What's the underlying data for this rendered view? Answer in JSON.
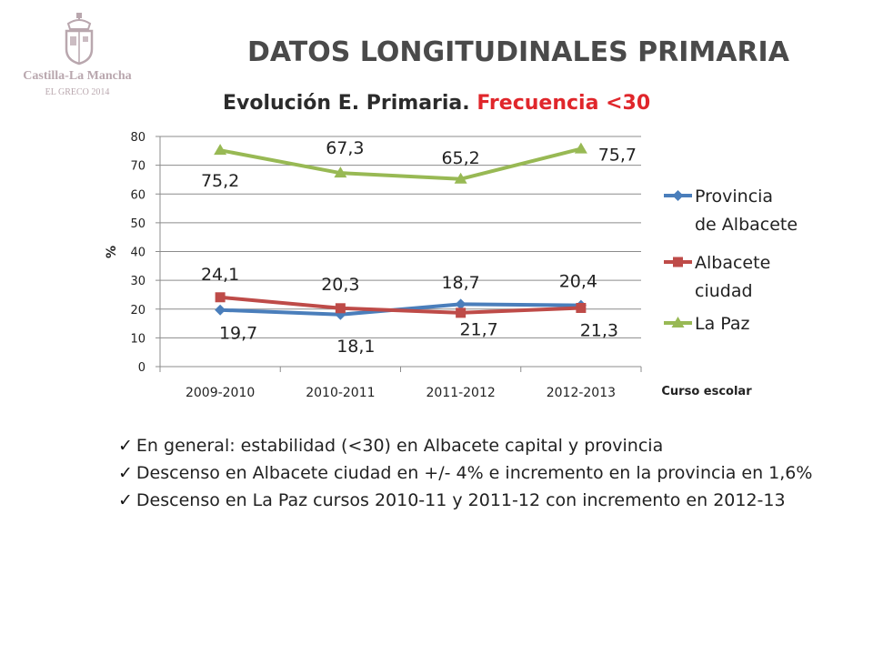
{
  "logo": {
    "name": "Castilla-La Mancha",
    "subtitle": "EL GRECO 2014"
  },
  "slide_title": "DATOS LONGITUDINALES PRIMARIA",
  "chart_title_main": "Evolución E. Primaria.",
  "chart_title_highlight": "Frecuencia <30",
  "colors": {
    "provincia": "#4a7ebb",
    "ciudad": "#be4b48",
    "lapaz": "#98b954",
    "highlight": "#e0262b"
  },
  "chart_data": {
    "type": "line",
    "title": "Evolución E. Primaria. Frecuencia <30",
    "xlabel": "Curso escolar",
    "ylabel": "%",
    "ylim": [
      0,
      80
    ],
    "yticks": [
      0,
      10,
      20,
      30,
      40,
      50,
      60,
      70,
      80
    ],
    "categories": [
      "2009-2010",
      "2010-2011",
      "2011-2012",
      "2012-2013"
    ],
    "grid": "horizontal",
    "legend_position": "right",
    "series": [
      {
        "name": "Provincia de Albacete",
        "values": [
          19.7,
          18.1,
          21.7,
          21.3
        ],
        "labels": [
          "19,7",
          "18,1",
          "21,7",
          "21,3"
        ],
        "color": "#4a7ebb",
        "marker": "diamond"
      },
      {
        "name": "Albacete ciudad",
        "values": [
          24.1,
          20.3,
          18.7,
          20.4
        ],
        "labels": [
          "24,1",
          "20,3",
          "18,7",
          "20,4"
        ],
        "color": "#be4b48",
        "marker": "square"
      },
      {
        "name": "La Paz",
        "values": [
          75.2,
          67.3,
          65.2,
          75.7
        ],
        "labels": [
          "75,2",
          "67,3",
          "65,2",
          "75,7"
        ],
        "color": "#98b954",
        "marker": "triangle"
      }
    ]
  },
  "legend_lines": [
    [
      "Provincia",
      "de Albacete"
    ],
    [
      "Albacete",
      "ciudad"
    ],
    [
      "La Paz"
    ]
  ],
  "bullets": [
    "En general: estabilidad (<30) en Albacete capital y provincia",
    "Descenso en Albacete ciudad en +/- 4% e incremento en la provincia en 1,6%",
    "Descenso en La Paz cursos 2010-11 y 2011-12 con incremento en 2012-13"
  ]
}
